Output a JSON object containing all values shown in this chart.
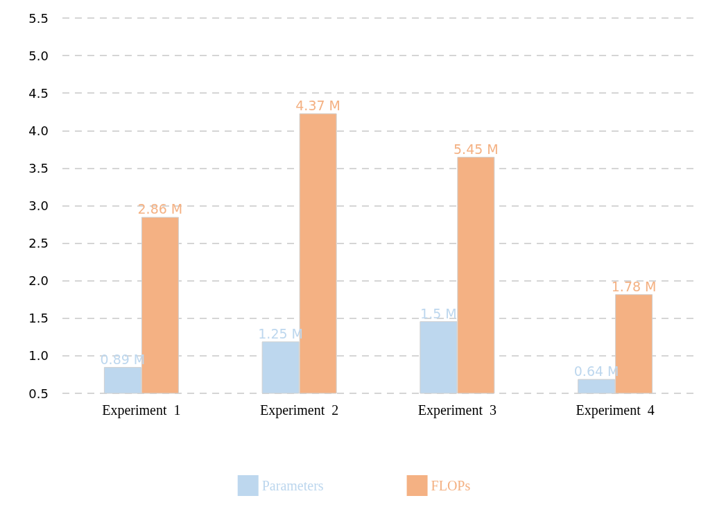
{
  "chart_data": {
    "type": "bar",
    "categories": [
      "Experiment  1",
      "Experiment  2",
      "Experiment  3",
      "Experiment  4"
    ],
    "series": [
      {
        "name": "Parameters",
        "color": "#bdd7ee",
        "values": [
          0.85,
          1.19,
          1.46,
          0.69
        ]
      },
      {
        "name": "FLOPs",
        "color": "#f4b183",
        "values": [
          2.85,
          4.23,
          3.65,
          1.82
        ]
      }
    ],
    "annotations": [
      {
        "text": "0.89 M",
        "x": "Experiment  1",
        "y": 0.85
      },
      {
        "text": "1.25 M",
        "x": "Experiment  2",
        "y": 1.19
      },
      {
        "text": "1.5 M",
        "x": "Experiment  3",
        "y": 1.46
      },
      {
        "text": "0.64 M",
        "x": "Experiment  4",
        "y": 0.69
      },
      {
        "text": "2.86 M",
        "x": "Experiment  1",
        "y": 2.85
      },
      {
        "text": "4.37 M",
        "x": "Experiment  2",
        "y": 4.23
      },
      {
        "text": "5.45 M",
        "x": "Experiment  3",
        "y": 3.65
      },
      {
        "text": "1.78 M",
        "x": "Experiment  4",
        "y": 1.82
      }
    ],
    "ylim": [
      0.5,
      5.5
    ],
    "yticks": [
      0.5,
      {
        "value": 1,
        "label": "1.0"
      },
      1.5,
      {
        "value": 2,
        "label": "2.0"
      },
      2.5,
      {
        "value": 3,
        "label": "3.0"
      },
      3.5,
      {
        "value": 4,
        "label": "4.0"
      },
      4.5,
      {
        "value": 5,
        "label": "5.0"
      },
      5.5
    ],
    "grid": "y",
    "line_style": "dashed",
    "legend": "bottom"
  }
}
